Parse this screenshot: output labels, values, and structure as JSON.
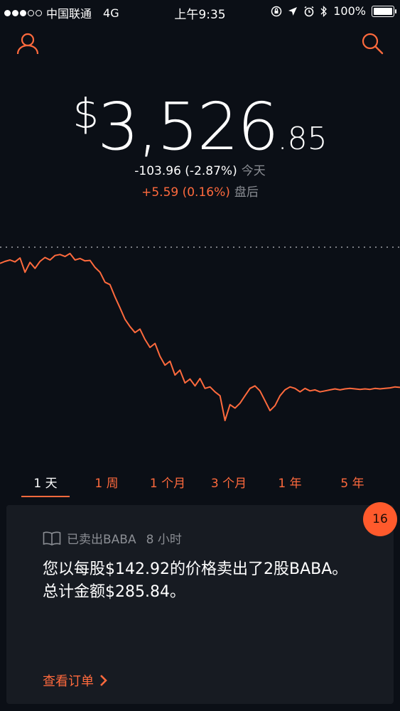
{
  "status_bar": {
    "carrier": "中国联通",
    "network": "4G",
    "time": "上午9:35",
    "battery": "100%"
  },
  "icons": {
    "profile": "person-icon",
    "search": "search-icon",
    "book": "book-icon",
    "chevron": "chevron-right-icon"
  },
  "portfolio": {
    "currency": "$",
    "value_int": "3,526",
    "value_dec": ".85",
    "change_today": "-103.96 (-2.87%)",
    "change_today_label": "今天",
    "change_after": "+5.59 (0.16%)",
    "change_after_label": "盘后"
  },
  "chart_data": {
    "type": "line",
    "x": [
      0,
      1,
      2,
      3,
      4,
      5,
      6,
      7,
      8,
      9,
      10,
      11,
      12,
      13,
      14,
      15,
      16,
      17,
      18,
      19,
      20,
      21,
      22,
      23,
      24,
      25,
      26,
      27,
      28,
      29,
      30,
      31,
      32,
      33,
      34,
      35,
      36,
      37,
      38,
      39,
      40,
      41,
      42,
      43,
      44,
      45,
      46,
      47,
      48,
      49,
      50,
      51,
      52,
      53,
      54,
      55,
      56,
      57,
      58,
      59,
      60,
      61,
      62,
      63,
      64,
      65,
      66,
      67,
      68,
      69,
      70,
      71,
      72,
      73,
      74,
      75,
      76,
      77,
      78,
      79,
      80
    ],
    "values": [
      3598,
      3602,
      3605,
      3601,
      3609,
      3580,
      3600,
      3588,
      3602,
      3610,
      3605,
      3614,
      3616,
      3612,
      3618,
      3605,
      3608,
      3603,
      3604,
      3590,
      3580,
      3560,
      3555,
      3530,
      3508,
      3485,
      3470,
      3458,
      3465,
      3444,
      3428,
      3436,
      3410,
      3392,
      3400,
      3372,
      3382,
      3356,
      3364,
      3350,
      3365,
      3345,
      3348,
      3338,
      3330,
      3280,
      3312,
      3305,
      3315,
      3330,
      3345,
      3350,
      3340,
      3320,
      3300,
      3310,
      3330,
      3342,
      3348,
      3345,
      3338,
      3345,
      3340,
      3342,
      3338,
      3340,
      3342,
      3344,
      3342,
      3344,
      3345,
      3344,
      3343,
      3344,
      3343,
      3345,
      3344,
      3345,
      3346,
      3348,
      3347
    ],
    "baseline": 3630.81,
    "color": "#ff6a3d"
  },
  "tabs": [
    "1 天",
    "1 周",
    "1 个月",
    "3 个月",
    "1 年",
    "5 年"
  ],
  "notification": {
    "count": "16",
    "title": "已卖出BABA",
    "time": "8 小时",
    "body": "您以每股$142.92的价格卖出了2股BABA。总计金额$285.84。",
    "link": "查看订单"
  },
  "colors": {
    "background": "#0b0f16",
    "accent": "#ff6a3d",
    "card": "#171b22",
    "muted": "#8b8e94"
  }
}
